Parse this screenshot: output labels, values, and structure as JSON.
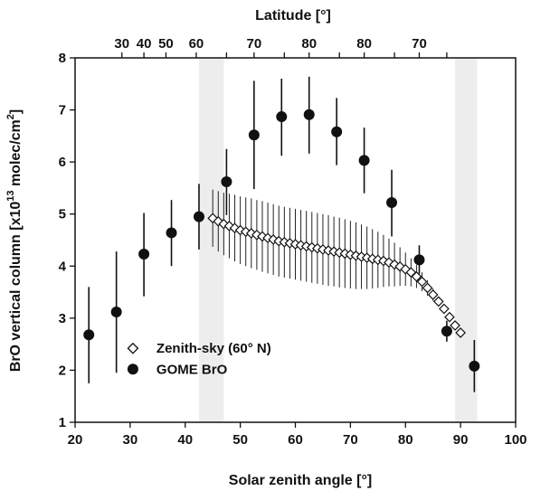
{
  "chart_data": {
    "type": "scatter",
    "title": "",
    "xlabel": "Solar zenith angle [°]",
    "ylabel_parts": [
      "BrO vertical column [x10",
      "13",
      " molec/cm",
      "2",
      "]"
    ],
    "top_axis_label": "Latitude [°]",
    "xlim": [
      20,
      100
    ],
    "ylim": [
      1,
      8
    ],
    "x_ticks": [
      20,
      30,
      40,
      50,
      60,
      70,
      80,
      90,
      100
    ],
    "y_ticks": [
      1,
      2,
      3,
      4,
      5,
      6,
      7,
      8
    ],
    "top_ticks": [
      {
        "x": 28.5,
        "label": "30"
      },
      {
        "x": 32.5,
        "label": "40"
      },
      {
        "x": 36.5,
        "label": "50"
      },
      {
        "x": 42,
        "label": "60"
      },
      {
        "x": 47.5,
        "label": ""
      },
      {
        "x": 52.5,
        "label": "70"
      },
      {
        "x": 58,
        "label": ""
      },
      {
        "x": 62.5,
        "label": "80"
      },
      {
        "x": 68,
        "label": ""
      },
      {
        "x": 72.5,
        "label": "80"
      },
      {
        "x": 78,
        "label": ""
      },
      {
        "x": 82.5,
        "label": "70"
      },
      {
        "x": 87.5,
        "label": ""
      }
    ],
    "shaded_regions": [
      [
        42.5,
        47
      ],
      [
        89,
        93
      ]
    ],
    "legend": {
      "placement": "lower-left",
      "entries": [
        {
          "label": "Zenith-sky (60° N)",
          "marker": "diamond-open"
        },
        {
          "label": "GOME BrO",
          "marker": "circle-filled"
        }
      ]
    },
    "series": [
      {
        "name": "GOME BrO",
        "marker": "circle-filled",
        "points": [
          {
            "x": 22.5,
            "y": 2.68,
            "ylo": 1.75,
            "yhi": 3.6
          },
          {
            "x": 27.5,
            "y": 3.12,
            "ylo": 1.95,
            "yhi": 4.28
          },
          {
            "x": 32.5,
            "y": 4.23,
            "ylo": 3.42,
            "yhi": 5.02
          },
          {
            "x": 37.5,
            "y": 4.64,
            "ylo": 4.0,
            "yhi": 5.27
          },
          {
            "x": 42.5,
            "y": 4.95,
            "ylo": 4.32,
            "yhi": 5.58
          },
          {
            "x": 47.5,
            "y": 5.62,
            "ylo": 4.98,
            "yhi": 6.25
          },
          {
            "x": 52.5,
            "y": 6.52,
            "ylo": 5.48,
            "yhi": 7.56
          },
          {
            "x": 57.5,
            "y": 6.87,
            "ylo": 6.12,
            "yhi": 7.6
          },
          {
            "x": 62.5,
            "y": 6.91,
            "ylo": 6.16,
            "yhi": 7.64
          },
          {
            "x": 67.5,
            "y": 6.58,
            "ylo": 5.94,
            "yhi": 7.23
          },
          {
            "x": 72.5,
            "y": 6.03,
            "ylo": 5.4,
            "yhi": 6.66
          },
          {
            "x": 77.5,
            "y": 5.22,
            "ylo": 4.57,
            "yhi": 5.85
          },
          {
            "x": 82.5,
            "y": 4.12,
            "ylo": 3.85,
            "yhi": 4.4
          },
          {
            "x": 87.5,
            "y": 2.75,
            "ylo": 2.55,
            "yhi": 2.95
          },
          {
            "x": 92.5,
            "y": 2.08,
            "ylo": 1.58,
            "yhi": 2.58
          }
        ]
      },
      {
        "name": "Zenith-sky (60° N)",
        "marker": "diamond-open",
        "x": [
          45,
          46,
          47,
          48,
          49,
          50,
          51,
          52,
          53,
          54,
          55,
          56,
          57,
          58,
          59,
          60,
          61,
          62,
          63,
          64,
          65,
          66,
          67,
          68,
          69,
          70,
          71,
          72,
          73,
          74,
          75,
          76,
          77,
          78,
          79,
          80,
          81,
          82,
          83,
          84,
          85,
          86,
          87,
          88,
          89,
          90
        ],
        "y": [
          4.92,
          4.86,
          4.81,
          4.77,
          4.73,
          4.69,
          4.66,
          4.63,
          4.6,
          4.57,
          4.54,
          4.51,
          4.48,
          4.46,
          4.44,
          4.42,
          4.4,
          4.38,
          4.36,
          4.34,
          4.32,
          4.3,
          4.28,
          4.26,
          4.24,
          4.22,
          4.2,
          4.18,
          4.16,
          4.14,
          4.12,
          4.1,
          4.07,
          4.03,
          3.99,
          3.94,
          3.88,
          3.8,
          3.7,
          3.58,
          3.45,
          3.32,
          3.18,
          3.02,
          2.86,
          2.72
        ],
        "err": [
          0.55,
          0.58,
          0.6,
          0.62,
          0.64,
          0.65,
          0.66,
          0.67,
          0.67,
          0.68,
          0.68,
          0.68,
          0.68,
          0.68,
          0.68,
          0.68,
          0.68,
          0.68,
          0.68,
          0.68,
          0.68,
          0.68,
          0.67,
          0.67,
          0.66,
          0.65,
          0.64,
          0.62,
          0.6,
          0.57,
          0.54,
          0.5,
          0.46,
          0.42,
          0.37,
          0.32,
          0.27,
          0.22,
          0.18,
          0.15,
          0.12,
          0.1,
          0.08,
          0.07,
          0.06,
          0.05
        ]
      }
    ]
  }
}
